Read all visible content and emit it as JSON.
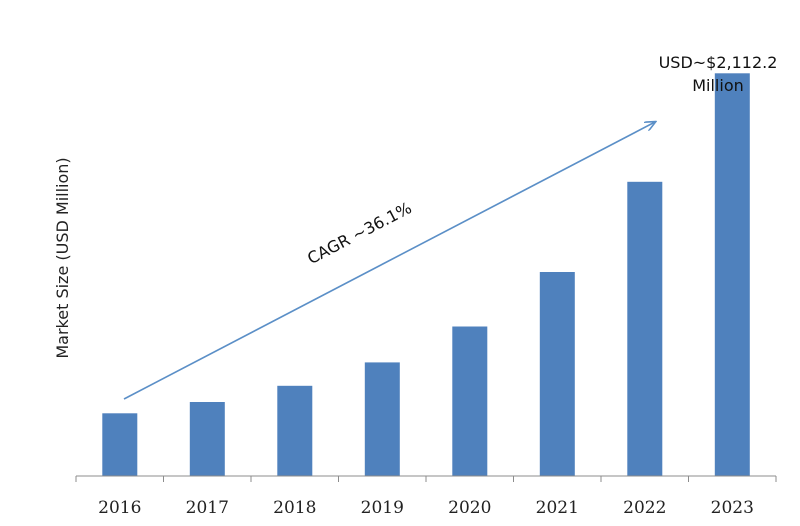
{
  "chart_data": {
    "type": "bar",
    "categories": [
      "2016",
      "2017",
      "2018",
      "2019",
      "2020",
      "2021",
      "2022",
      "2023"
    ],
    "values": [
      329,
      388,
      473,
      596,
      784,
      1070,
      1543,
      2112.2
    ],
    "ylabel": "Market Size (USD Million)",
    "xlabel": "",
    "ylim": [
      0,
      2350
    ],
    "grid": false,
    "legend": "none",
    "bar_color": "#4f81bd",
    "annotations": {
      "cagr": "CAGR ~36.1%",
      "last_value_line1": "USD~$2,112.2",
      "last_value_line2": "Million"
    },
    "arrow_color": "#5b8fc7"
  }
}
